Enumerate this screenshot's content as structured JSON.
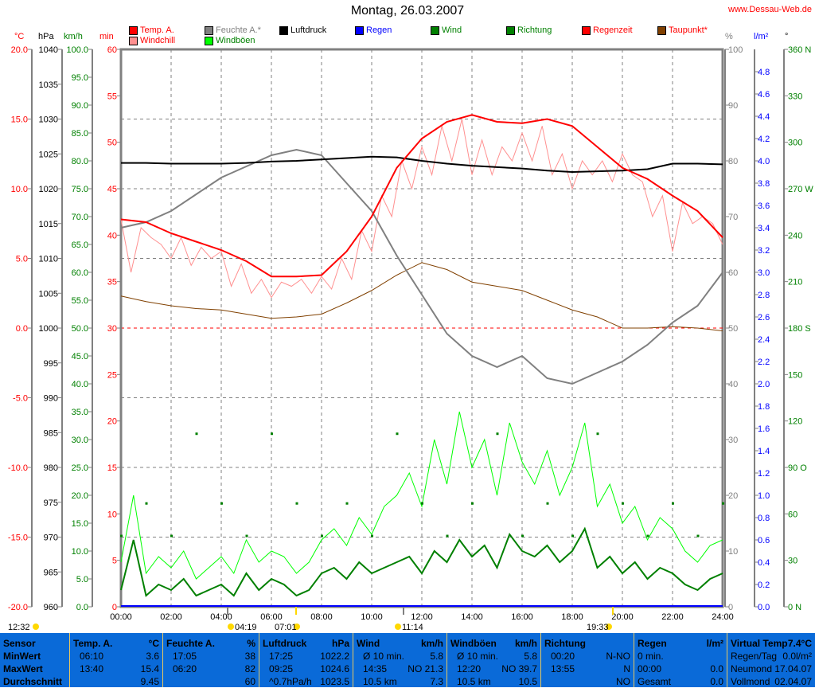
{
  "header": {
    "title": "Montag, 26.03.2007",
    "url": "www.Dessau-Web.de"
  },
  "legend": [
    {
      "label": "Temp. A.",
      "color": "#ff0000",
      "text": "#ff0000"
    },
    {
      "label": "Feuchte A.*",
      "color": "#808080",
      "text": "#808080"
    },
    {
      "label": "Luftdruck",
      "color": "#000000",
      "text": "#000000"
    },
    {
      "label": "Regen",
      "color": "#0000ff",
      "text": "#0000ff"
    },
    {
      "label": "Wind",
      "color": "#008000",
      "text": "#008000"
    },
    {
      "label": "Richtung",
      "color": "#008000",
      "text": "#008000"
    },
    {
      "label": "Regenzeit",
      "color": "#ff0000",
      "text": "#ff0000"
    },
    {
      "label": "Taupunkt*",
      "color": "#804000",
      "text": "#ff0000"
    },
    {
      "label": "Windchill",
      "color": "#ff9090",
      "text": "#ff0000"
    },
    {
      "label": "Windböen",
      "color": "#00ff00",
      "text": "#008000"
    }
  ],
  "units": {
    "temp": "°C",
    "pressure": "hPa",
    "wind": "km/h",
    "rain_time": "min",
    "humidity": "%",
    "rain": "l/m²",
    "direction": "°"
  },
  "chart_data": {
    "type": "line",
    "title": "Montag, 26.03.2007",
    "xlabel": "Uhrzeit",
    "xlim": [
      0,
      24
    ],
    "x_ticks": [
      "00:00",
      "02:00",
      "04:00",
      "06:00",
      "08:00",
      "10:00",
      "12:00",
      "14:00",
      "16:00",
      "18:00",
      "20:00",
      "22:00",
      "24:00"
    ],
    "axes": {
      "temp": {
        "range": [
          -20,
          20
        ],
        "ticks": [
          "20.0",
          "15.0",
          "10.0",
          "5.0",
          "0.0",
          "-5.0",
          "-10.0",
          "-15.0",
          "-20.0"
        ]
      },
      "pressure": {
        "range": [
          960,
          1040
        ],
        "ticks": [
          "1040",
          "1035",
          "1030",
          "1025",
          "1020",
          "1015",
          "1010",
          "1005",
          "1000",
          "995",
          "990",
          "985",
          "980",
          "975",
          "970",
          "965",
          "960"
        ]
      },
      "wind": {
        "range": [
          0,
          100
        ],
        "ticks": [
          "100.0",
          "95.0",
          "90.0",
          "85.0",
          "80.0",
          "75.0",
          "70.0",
          "65.0",
          "60.0",
          "55.0",
          "50.0",
          "45.0",
          "40.0",
          "35.0",
          "30.0",
          "25.0",
          "20.0",
          "15.0",
          "10.0",
          "5.0",
          "0.0"
        ]
      },
      "rain_time": {
        "range": [
          0,
          60
        ],
        "ticks": [
          "60",
          "55",
          "50",
          "45",
          "40",
          "35",
          "30",
          "25",
          "20",
          "15",
          "10",
          "5",
          "0"
        ]
      },
      "humidity": {
        "range": [
          0,
          100
        ],
        "ticks": [
          "100",
          "90",
          "80",
          "70",
          "60",
          "50",
          "40",
          "30",
          "20",
          "10",
          "0"
        ]
      },
      "rain": {
        "range": [
          0,
          5
        ],
        "ticks": [
          "4.8",
          "4.6",
          "4.4",
          "4.2",
          "4.0",
          "3.8",
          "3.6",
          "3.4",
          "3.2",
          "3.0",
          "2.8",
          "2.6",
          "2.4",
          "2.2",
          "2.0",
          "1.8",
          "1.6",
          "1.4",
          "1.2",
          "1.0",
          "0.8",
          "0.6",
          "0.4",
          "0.2",
          "0.0"
        ]
      },
      "direction": {
        "range": [
          0,
          360
        ],
        "ticks": [
          "360 N",
          "330",
          "300",
          "270 W",
          "240",
          "210",
          "180 S",
          "150",
          "120",
          "90 O",
          "60",
          "30",
          "0 N"
        ]
      }
    },
    "series_hourly_x": [
      0,
      1,
      2,
      3,
      4,
      5,
      6,
      7,
      8,
      9,
      10,
      11,
      12,
      13,
      14,
      15,
      16,
      17,
      18,
      19,
      20,
      21,
      22,
      23,
      24
    ],
    "temperature": [
      7.8,
      7.6,
      6.8,
      6.2,
      5.6,
      4.8,
      3.7,
      3.7,
      3.8,
      5.5,
      8.0,
      11.5,
      13.6,
      14.8,
      15.3,
      14.8,
      14.7,
      15.0,
      14.5,
      13.0,
      11.5,
      10.7,
      9.5,
      8.4,
      6.5
    ],
    "humidity": [
      68,
      69,
      71,
      74,
      77,
      79,
      81,
      82,
      81,
      76,
      71,
      63,
      56,
      49,
      45,
      43,
      45,
      41,
      40,
      42,
      44,
      47,
      51,
      54,
      60
    ],
    "pressure": [
      1023.7,
      1023.7,
      1023.6,
      1023.6,
      1023.6,
      1023.7,
      1023.9,
      1024.0,
      1024.2,
      1024.4,
      1024.6,
      1024.5,
      1024.0,
      1023.6,
      1023.3,
      1023.1,
      1022.9,
      1022.6,
      1022.4,
      1022.5,
      1022.6,
      1022.8,
      1023.6,
      1023.6,
      1023.5
    ],
    "dewpoint": [
      2.3,
      1.9,
      1.6,
      1.4,
      1.3,
      1.0,
      0.7,
      0.8,
      1.0,
      1.8,
      2.7,
      3.8,
      4.7,
      4.2,
      3.3,
      3.0,
      2.7,
      2.0,
      1.3,
      0.8,
      0.0,
      0.0,
      0.1,
      0.0,
      -0.2
    ],
    "direction_deg": [
      46,
      67,
      46,
      112,
      67,
      46,
      112,
      67,
      46,
      67,
      46,
      112,
      67,
      46,
      67,
      112,
      46,
      67,
      46,
      112,
      67,
      46,
      67,
      46,
      67
    ],
    "series_halfhour_x_step": 0.5,
    "windchill": [
      7.8,
      4,
      7.2,
      6.5,
      6,
      5,
      6.5,
      4.5,
      5.8,
      5,
      5.5,
      3,
      4.6,
      2.5,
      3.5,
      2.2,
      3.3,
      3.0,
      3.5,
      2.5,
      3.7,
      2.8,
      5.0,
      3.5,
      7.0,
      5.5,
      9.5,
      8,
      12,
      10,
      13.0,
      11,
      14.5,
      12,
      15.0,
      11,
      13.5,
      11,
      13,
      12,
      14.0,
      12,
      14.5,
      11,
      12.5,
      10,
      12,
      11,
      12,
      10.5,
      12.5,
      11,
      10.5,
      8,
      9.5,
      5.5,
      9,
      7.5,
      8,
      7.5,
      6.0
    ],
    "wind": [
      3,
      12,
      2,
      4,
      3,
      5,
      2,
      3,
      4,
      2,
      6,
      3,
      5,
      4,
      2,
      3,
      6,
      7,
      5,
      8,
      6,
      7,
      8,
      9,
      6,
      10,
      8,
      12,
      9,
      11,
      7,
      13,
      10,
      9,
      11,
      8,
      10,
      14,
      7,
      9,
      6,
      8,
      5,
      7,
      6,
      4,
      3,
      5,
      6
    ],
    "gusts": [
      8,
      20,
      6,
      9,
      7,
      10,
      5,
      7,
      9,
      6,
      12,
      8,
      10,
      9,
      6,
      8,
      12,
      14,
      11,
      16,
      13,
      18,
      20,
      24,
      18,
      30,
      22,
      35,
      25,
      30,
      20,
      33,
      26,
      22,
      28,
      20,
      25,
      33,
      18,
      22,
      15,
      18,
      12,
      16,
      14,
      10,
      8,
      11,
      12
    ],
    "zero_line_temp": 0
  },
  "markers": [
    {
      "label": "12:32",
      "icon": "moon-icon"
    },
    {
      "label": "04:19",
      "icon": "moonset-icon"
    },
    {
      "label": "07:01",
      "icon": "sunrise-icon"
    },
    {
      "label": "11:14",
      "icon": "moonrise-icon"
    },
    {
      "label": "19:33",
      "icon": "sunset-icon"
    }
  ],
  "table": [
    {
      "h": [
        "Sensor",
        ""
      ],
      "r": [
        [
          "MinWert",
          ""
        ],
        [
          "MaxWert",
          ""
        ],
        [
          "Durchschnitt",
          ""
        ]
      ]
    },
    {
      "h": [
        "Temp. A.",
        "°C"
      ],
      "r": [
        [
          "06:10",
          "3.6"
        ],
        [
          "13:40",
          "15.4"
        ],
        [
          "",
          "9.45"
        ]
      ]
    },
    {
      "h": [
        "Feuchte A.",
        "%"
      ],
      "r": [
        [
          "17:05",
          "38"
        ],
        [
          "06:20",
          "82"
        ],
        [
          "",
          "60"
        ]
      ]
    },
    {
      "h": [
        "Luftdruck",
        "hPa"
      ],
      "r": [
        [
          "17:25",
          "1022.2"
        ],
        [
          "09:25",
          "1024.6"
        ],
        [
          "^0.7hPa/h",
          "1023.5"
        ]
      ]
    },
    {
      "h": [
        "Wind",
        "km/h"
      ],
      "r": [
        [
          "Ø 10 min.",
          "5.8"
        ],
        [
          "14:35",
          "NO 21.3"
        ],
        [
          "10.5 km",
          "7.3"
        ]
      ]
    },
    {
      "h": [
        "Windböen",
        "km/h"
      ],
      "r": [
        [
          "Ø 10 min.",
          "5.8"
        ],
        [
          "12:20",
          "NO 39.7"
        ],
        [
          "10.5 km",
          "10.5"
        ]
      ]
    },
    {
      "h": [
        "Richtung",
        ""
      ],
      "r": [
        [
          "00:20",
          "N-NO"
        ],
        [
          "13:55",
          "N"
        ],
        [
          "",
          "NO"
        ]
      ]
    },
    {
      "h": [
        "Regen",
        "l/m²"
      ],
      "r": [
        [
          "0 min.",
          ""
        ],
        [
          "00:00",
          "0.0"
        ],
        [
          "Gesamt",
          "0.0"
        ]
      ]
    },
    {
      "h": [
        "Virtual Temp",
        "7.4°C"
      ],
      "r": [
        [
          "Regen/Tag",
          "0.0l/m²"
        ],
        [
          "Neumond",
          "17.04.07"
        ],
        [
          "Vollmond",
          "02.04.07"
        ]
      ]
    }
  ]
}
